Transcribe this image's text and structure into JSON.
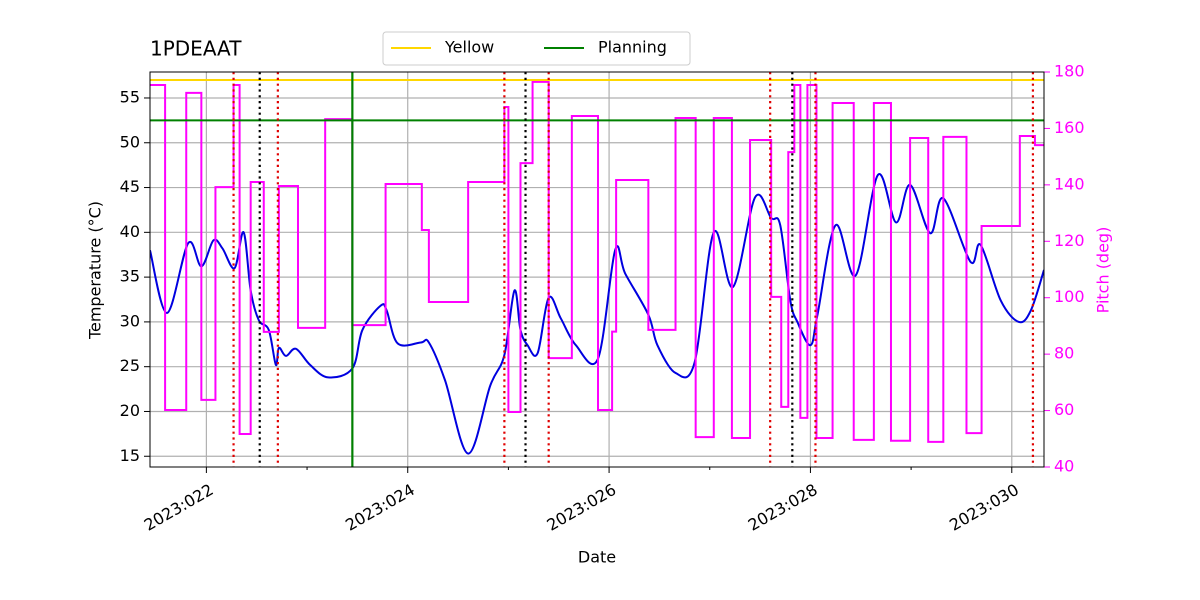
{
  "chart_data": {
    "type": "line",
    "title": "1PDEAAT",
    "xlabel": "Date",
    "ylabel": "Temperature (°C)",
    "y2label": "Pitch (deg)",
    "y2color": "#ff00ff",
    "xlim": [
      21.44,
      30.32
    ],
    "xticks": [
      {
        "value": 22,
        "label": "2023:022"
      },
      {
        "value": 24,
        "label": "2023:024"
      },
      {
        "value": 26,
        "label": "2023:026"
      },
      {
        "value": 28,
        "label": "2023:028"
      },
      {
        "value": 30,
        "label": "2023:030"
      }
    ],
    "xminorticks": [
      23,
      25,
      27,
      29
    ],
    "ylim": [
      13.8,
      57.9
    ],
    "yticks": [
      15,
      20,
      25,
      30,
      35,
      40,
      45,
      50,
      55
    ],
    "y2lim": [
      40,
      180
    ],
    "y2ticks": [
      40,
      60,
      80,
      100,
      120,
      140,
      160,
      180
    ],
    "grid": true,
    "legend": "upper center",
    "series": [
      {
        "color": "#0000e0",
        "smooth": true,
        "x": [
          21.44,
          21.61,
          21.82,
          21.95,
          22.07,
          22.16,
          22.28,
          22.37,
          22.44,
          22.52,
          22.62,
          22.69,
          22.72,
          22.79,
          22.89,
          23.03,
          23.21,
          23.45,
          23.55,
          23.73,
          23.79,
          23.9,
          24.13,
          24.21,
          24.37,
          24.6,
          24.82,
          24.96,
          25.06,
          25.12,
          25.19,
          25.29,
          25.4,
          25.52,
          25.67,
          25.89,
          26.06,
          26.16,
          26.39,
          26.48,
          26.66,
          26.85,
          27.04,
          27.23,
          27.45,
          27.61,
          27.7,
          27.8,
          27.87,
          28.0,
          28.07,
          28.25,
          28.45,
          28.67,
          28.85,
          28.99,
          29.19,
          29.32,
          29.59,
          29.69,
          29.89,
          30.07,
          30.19,
          30.32
        ],
        "values": [
          38.0,
          31.0,
          38.8,
          36.2,
          39.1,
          38.2,
          36.0,
          40.0,
          33.5,
          30.2,
          29.1,
          25.2,
          27.1,
          26.2,
          27.0,
          25.2,
          23.8,
          24.8,
          29.1,
          31.8,
          31.3,
          27.6,
          27.7,
          27.7,
          23.5,
          15.3,
          22.9,
          26.3,
          33.5,
          29.1,
          27.4,
          26.5,
          32.7,
          30.4,
          27.4,
          25.9,
          38.0,
          35.4,
          30.8,
          27.4,
          24.3,
          25.5,
          40.0,
          33.9,
          43.9,
          41.6,
          40.8,
          32.4,
          30.0,
          27.4,
          30.8,
          40.8,
          35.2,
          46.4,
          41.1,
          45.3,
          39.9,
          43.8,
          36.7,
          38.6,
          32.4,
          30.0,
          31.3,
          35.8
        ]
      },
      {
        "color": "#ff00ff",
        "axis": "y2",
        "drawstyle": "steps-post",
        "x": [
          21.44,
          21.59,
          21.8,
          21.95,
          22.09,
          22.27,
          22.33,
          22.44,
          22.57,
          22.72,
          22.91,
          23.18,
          23.45,
          23.78,
          24.14,
          24.21,
          24.6,
          24.96,
          25.0,
          25.12,
          25.24,
          25.4,
          25.63,
          25.89,
          26.03,
          26.07,
          26.39,
          26.66,
          26.86,
          27.04,
          27.22,
          27.4,
          27.61,
          27.71,
          27.78,
          27.84,
          27.9,
          27.97,
          28.06,
          28.22,
          28.43,
          28.63,
          28.8,
          28.99,
          29.17,
          29.32,
          29.55,
          29.7,
          30.08,
          30.23,
          30.32
        ],
        "values": [
          175.4,
          60.2,
          172.6,
          63.8,
          139.2,
          175.4,
          51.7,
          141,
          87.9,
          139.6,
          89.3,
          163.3,
          90.3,
          140.3,
          124,
          98.5,
          141,
          167.6,
          59.5,
          147.7,
          176.5,
          78.6,
          164.4,
          60.2,
          88,
          141.7,
          88.6,
          163.7,
          50.6,
          163.7,
          50.3,
          155.9,
          100.3,
          61.3,
          151.6,
          175.4,
          57.4,
          175.4,
          50.3,
          169,
          49.6,
          169,
          49.3,
          156.6,
          48.9,
          157,
          52,
          125.4,
          157.3,
          154.1,
          154.1
        ]
      }
    ],
    "hlines": [
      {
        "name": "Yellow",
        "value": 57,
        "color": "#ffd700"
      },
      {
        "name": "Planning",
        "value": 52.5,
        "color": "#008000"
      }
    ],
    "vlines": [
      {
        "x": 22.27,
        "color": "#e00000",
        "style": "dotted"
      },
      {
        "x": 22.71,
        "color": "#e00000",
        "style": "dotted"
      },
      {
        "x": 24.96,
        "color": "#e00000",
        "style": "dotted"
      },
      {
        "x": 25.4,
        "color": "#e00000",
        "style": "dotted"
      },
      {
        "x": 27.6,
        "color": "#e00000",
        "style": "dotted"
      },
      {
        "x": 28.05,
        "color": "#e00000",
        "style": "dotted"
      },
      {
        "x": 30.21,
        "color": "#e00000",
        "style": "dotted"
      },
      {
        "x": 22.53,
        "color": "#000000",
        "style": "dotted"
      },
      {
        "x": 25.17,
        "color": "#000000",
        "style": "dotted"
      },
      {
        "x": 27.82,
        "color": "#000000",
        "style": "dotted"
      },
      {
        "x": 23.45,
        "color": "#008000",
        "style": "solid"
      }
    ]
  }
}
